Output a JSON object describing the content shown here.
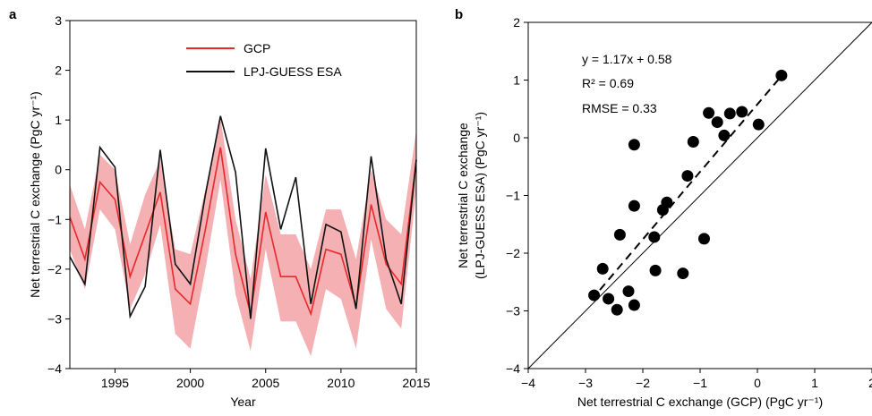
{
  "chart_data": [
    {
      "panel": "a",
      "type": "line",
      "xlabel": "Year",
      "ylabel": "Net terrestrial C exchange (PgC yr⁻¹)",
      "xlim": [
        1992,
        2015
      ],
      "ylim": [
        -4,
        3
      ],
      "xticks": [
        1995,
        2000,
        2005,
        2010,
        2015
      ],
      "yticks": [
        -4,
        -3,
        -2,
        -1,
        0,
        1,
        2,
        3
      ],
      "legend": {
        "position": "top-center",
        "entries": [
          "GCP",
          "LPJ-GUESS ESA"
        ]
      },
      "x": [
        1992,
        1993,
        1994,
        1995,
        1996,
        1997,
        1998,
        1999,
        2000,
        2001,
        2002,
        2003,
        2004,
        2005,
        2006,
        2007,
        2008,
        2009,
        2010,
        2011,
        2012,
        2013,
        2014,
        2015
      ],
      "series": [
        {
          "name": "GCP",
          "color": "#e8282a",
          "values": [
            -0.95,
            -1.8,
            -0.25,
            -0.6,
            -2.15,
            -1.3,
            -0.45,
            -2.4,
            -2.7,
            -1.2,
            0.45,
            -1.7,
            -2.9,
            -0.85,
            -2.15,
            -2.15,
            -2.9,
            -1.6,
            -1.7,
            -2.75,
            -0.7,
            -1.9,
            -2.3,
            0.2
          ],
          "band_upper": [
            -0.3,
            -1.2,
            0.3,
            0.0,
            -1.5,
            -0.5,
            0.2,
            -1.6,
            -1.7,
            -0.4,
            1.05,
            -1.0,
            -2.2,
            -0.1,
            -1.3,
            -1.3,
            -2.0,
            -0.8,
            -0.8,
            -1.8,
            0.0,
            -1.0,
            -1.3,
            0.8
          ],
          "band_lower": [
            -1.6,
            -2.4,
            -0.8,
            -1.2,
            -2.8,
            -2.1,
            -1.1,
            -3.3,
            -3.6,
            -2.0,
            -0.2,
            -2.5,
            -3.65,
            -1.6,
            -3.05,
            -3.05,
            -3.75,
            -2.4,
            -2.6,
            -3.6,
            -1.4,
            -2.8,
            -3.2,
            -0.4
          ],
          "band_color": "#f5b0b3"
        },
        {
          "name": "LPJ-GUESS ESA",
          "color": "#111111",
          "values": [
            -1.75,
            -2.3,
            0.45,
            0.05,
            -2.95,
            -2.35,
            0.4,
            -1.9,
            -2.3,
            -0.5,
            1.08,
            -0.05,
            -3.0,
            0.43,
            -1.2,
            -0.15,
            -2.7,
            -1.1,
            -1.25,
            -2.8,
            0.27,
            -1.8,
            -2.7,
            0.2
          ]
        }
      ]
    },
    {
      "panel": "b",
      "type": "scatter",
      "xlabel": "Net terrestrial C exchange (GCP) (PgC yr⁻¹)",
      "ylabel_lines": [
        "Net terrestrial C exchange",
        "(LPJ-GUESS ESA) (PgC yr⁻¹)"
      ],
      "xlim": [
        -4,
        2
      ],
      "ylim": [
        -4,
        2
      ],
      "xticks": [
        -4,
        -3,
        -2,
        -1,
        0,
        1,
        2
      ],
      "yticks": [
        -4,
        -3,
        -2,
        -1,
        0,
        1,
        2
      ],
      "annotations": [
        "y = 1.17x + 0.58",
        "R² = 0.69",
        "RMSE = 0.33"
      ],
      "fit": {
        "slope": 1.17,
        "intercept": 0.58,
        "x_range": [
          -2.75,
          0.43
        ]
      },
      "one_to_one_line": true,
      "points": [
        [
          -2.85,
          -2.73
        ],
        [
          -2.7,
          -2.27
        ],
        [
          -2.6,
          -2.79
        ],
        [
          -2.45,
          -2.98
        ],
        [
          -2.4,
          -1.68
        ],
        [
          -2.25,
          -2.66
        ],
        [
          -2.15,
          -2.9
        ],
        [
          -2.15,
          -1.18
        ],
        [
          -2.15,
          -0.12
        ],
        [
          -1.8,
          -1.72
        ],
        [
          -1.78,
          -2.3
        ],
        [
          -1.65,
          -1.25
        ],
        [
          -1.58,
          -1.12
        ],
        [
          -1.3,
          -2.35
        ],
        [
          -1.22,
          -0.66
        ],
        [
          -1.12,
          -0.07
        ],
        [
          -0.93,
          -1.75
        ],
        [
          -0.85,
          0.43
        ],
        [
          -0.7,
          0.27
        ],
        [
          -0.58,
          0.04
        ],
        [
          -0.48,
          0.42
        ],
        [
          -0.27,
          0.45
        ],
        [
          0.02,
          0.23
        ],
        [
          0.42,
          1.08
        ]
      ]
    }
  ]
}
